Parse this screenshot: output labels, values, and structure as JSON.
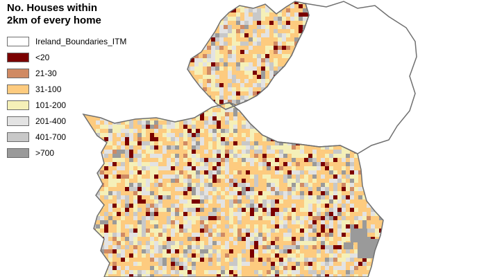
{
  "map": {
    "title_line1": "No. Houses within",
    "title_line2": "2km of every home",
    "boundary_color": "#6f6f6f",
    "legend": [
      {
        "label": "Ireland_Boundaries_ITM",
        "color": "#ffffff"
      },
      {
        "label": "<20",
        "color": "#7a0000"
      },
      {
        "label": "21-30",
        "color": "#d08a63"
      },
      {
        "label": "31-100",
        "color": "#fdcb7f"
      },
      {
        "label": "101-200",
        "color": "#f5f0b8"
      },
      {
        "label": "201-400",
        "color": "#e3e3e3"
      },
      {
        "label": "401-700",
        "color": "#c8c8c8"
      },
      {
        "label": ">700",
        "color": "#9a9a9a"
      }
    ]
  }
}
